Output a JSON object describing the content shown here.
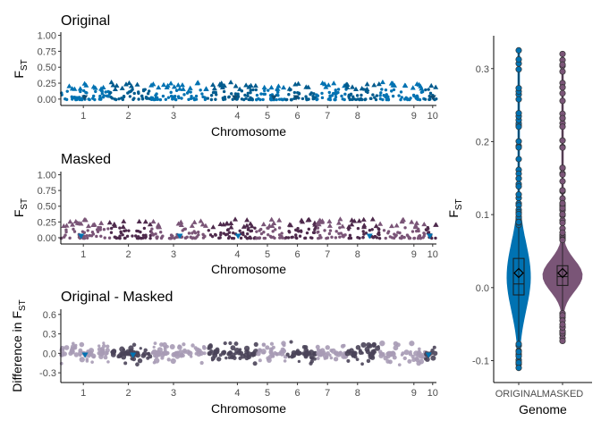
{
  "chart_data": [
    {
      "type": "scatter",
      "title": "Original",
      "xlabel": "Chromosome",
      "ylabel": "F",
      "ylabel_subscript": "ST",
      "ylim": [
        -0.1,
        1.05
      ],
      "yticks": [
        "0.00",
        "0.25",
        "0.50",
        "0.75",
        "1.00"
      ],
      "ytick_values": [
        0,
        0.25,
        0.5,
        0.75,
        1.0
      ],
      "xticks": [
        "1",
        "2",
        "3",
        "4",
        "5",
        "6",
        "7",
        "8",
        "9",
        "10"
      ],
      "chromosome_centers": [
        0.06,
        0.18,
        0.3,
        0.47,
        0.55,
        0.63,
        0.71,
        0.79,
        0.94,
        0.99
      ],
      "chromosome_bounds": [
        0,
        0.13,
        0.24,
        0.39,
        0.52,
        0.6,
        0.68,
        0.76,
        0.85,
        0.97,
        1.0
      ],
      "series_colors": [
        "#0072B2",
        "#005B8E"
      ],
      "highlight_color": "#0E4C73",
      "typical_max": 0.28,
      "outlier_marker": "triangle-up"
    },
    {
      "type": "scatter",
      "title": "Masked",
      "xlabel": "Chromosome",
      "ylabel": "F",
      "ylabel_subscript": "ST",
      "ylim": [
        -0.1,
        1.05
      ],
      "yticks": [
        "0.00",
        "0.25",
        "0.50",
        "0.75",
        "1.00"
      ],
      "ytick_values": [
        0,
        0.25,
        0.5,
        0.75,
        1.0
      ],
      "xticks": [
        "1",
        "2",
        "3",
        "4",
        "5",
        "6",
        "7",
        "8",
        "9",
        "10"
      ],
      "chromosome_centers": [
        0.06,
        0.18,
        0.3,
        0.47,
        0.55,
        0.63,
        0.71,
        0.79,
        0.94,
        0.99
      ],
      "chromosome_bounds": [
        0,
        0.13,
        0.24,
        0.39,
        0.52,
        0.6,
        0.68,
        0.76,
        0.85,
        0.97,
        1.0
      ],
      "series_colors": [
        "#7A5577",
        "#4E2A4C"
      ],
      "highlight_color": "#0072B2",
      "typical_max": 0.3,
      "outlier_marker": "triangle-up"
    },
    {
      "type": "scatter",
      "title": "Original - Masked",
      "xlabel": "Chromosome",
      "ylabel": "Difference in F",
      "ylabel_subscript": "ST",
      "ylim": [
        -0.45,
        0.68
      ],
      "yticks": [
        "-0.3",
        "0.0",
        "0.3",
        "0.6"
      ],
      "ytick_values": [
        -0.3,
        0.0,
        0.3,
        0.6
      ],
      "xticks": [
        "1",
        "2",
        "3",
        "4",
        "5",
        "6",
        "7",
        "8",
        "9",
        "10"
      ],
      "chromosome_centers": [
        0.06,
        0.18,
        0.3,
        0.47,
        0.55,
        0.63,
        0.71,
        0.79,
        0.94,
        0.99
      ],
      "chromosome_bounds": [
        0,
        0.13,
        0.24,
        0.39,
        0.52,
        0.6,
        0.68,
        0.76,
        0.85,
        0.97,
        1.0
      ],
      "series_colors": [
        "#A79BB5",
        "#4A4459"
      ],
      "highlight_color": "#0072B2",
      "range": [
        -0.2,
        0.2
      ],
      "outlier_marker": "circle"
    },
    {
      "type": "violin",
      "xlabel": "Genome",
      "ylabel": "F",
      "ylabel_subscript": "ST",
      "ylim": [
        -0.13,
        0.345
      ],
      "yticks": [
        "-0.1",
        "0.0",
        "0.1",
        "0.2",
        "0.3"
      ],
      "ytick_values": [
        -0.1,
        0.0,
        0.1,
        0.2,
        0.3
      ],
      "categories": [
        "ORIGINAL",
        "MASKED"
      ],
      "series": [
        {
          "category": "ORIGINAL",
          "color": "#0072B2",
          "min": -0.11,
          "q1": -0.01,
          "median": 0.005,
          "q3": 0.04,
          "mean": 0.02,
          "max": 0.325,
          "whisker_low": -0.07,
          "whisker_high": 0.085
        },
        {
          "category": "MASKED",
          "color": "#7A5577",
          "min": -0.073,
          "q1": 0.003,
          "median": 0.015,
          "q3": 0.03,
          "mean": 0.02,
          "max": 0.32,
          "whisker_low": -0.03,
          "whisker_high": 0.065
        }
      ]
    }
  ]
}
